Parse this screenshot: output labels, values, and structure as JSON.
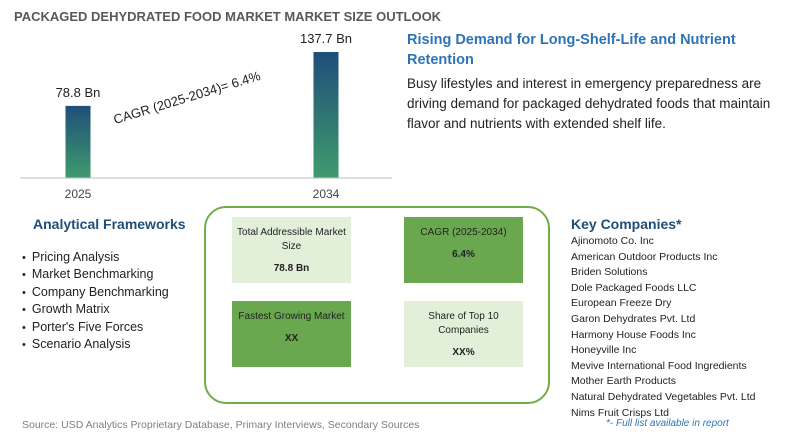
{
  "title": "PACKAGED DEHYDRATED FOOD MARKET MARKET SIZE OUTLOOK",
  "chart_data": {
    "type": "bar",
    "categories": [
      "2025",
      "2034"
    ],
    "values": [
      78.8,
      137.7
    ],
    "value_labels": [
      "78.8 Bn",
      "137.7 Bn"
    ],
    "colors": {
      "bar_top": "#1f4e79",
      "bar_bottom": "#3f9b6e"
    }
  },
  "cagr_label": "CAGR (2025-2034)=   6.4%",
  "headline": "Rising Demand for Long-Shelf-Life and Nutrient Retention",
  "description": "Busy lifestyles and interest in emergency preparedness are driving demand for packaged dehydrated foods that maintain flavor and nutrients with extended shelf life.",
  "frameworks": {
    "title": "Analytical Frameworks",
    "items": [
      "Pricing Analysis",
      "Market Benchmarking",
      "Company Benchmarking",
      "Growth Matrix",
      "Porter's Five Forces",
      "Scenario Analysis"
    ]
  },
  "cards": {
    "tam": {
      "label": "Total Addressible Market Size",
      "value": "78.8 Bn"
    },
    "cagr": {
      "label": "CAGR (2025-2034)",
      "value": "6.4%"
    },
    "fastest": {
      "label": "Fastest Growing Market",
      "value": "XX"
    },
    "share": {
      "label": "Share of Top 10 Companies",
      "value": "XX%"
    }
  },
  "companies": {
    "title": "Key Companies*",
    "items": [
      "Ajinomoto Co. Inc",
      "American Outdoor Products Inc",
      "Briden Solutions",
      "Dole Packaged Foods LLC",
      "European Freeze Dry",
      "Garon Dehydrates Pvt. Ltd",
      "Harmony House Foods Inc",
      "Honeyville Inc",
      "Mevive International Food Ingredients",
      "Mother Earth Products",
      "Natural Dehydrated Vegetables Pvt. Ltd",
      "Nims Fruit Crisps Ltd"
    ],
    "note": "*- Full list available in report"
  },
  "source": "Source: USD Analytics Proprietary Database, Primary Interviews, Secondary Sources"
}
